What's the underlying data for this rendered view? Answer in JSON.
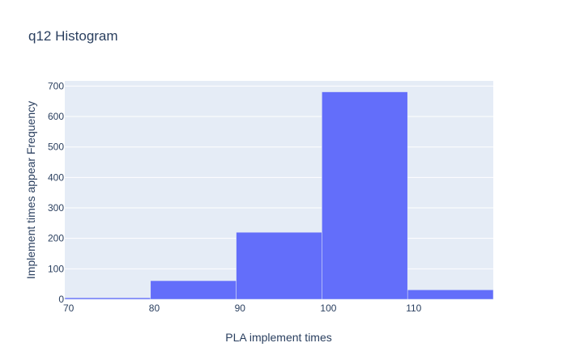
{
  "chart_data": {
    "type": "bar",
    "title": "q12 Histogram",
    "xlabel": "PLA implement times",
    "ylabel": "Implement times appear Frequency",
    "bins": [
      {
        "start": 70,
        "end": 80,
        "count": 5
      },
      {
        "start": 80,
        "end": 90,
        "count": 61
      },
      {
        "start": 90,
        "end": 100,
        "count": 220
      },
      {
        "start": 100,
        "end": 110,
        "count": 681
      },
      {
        "start": 110,
        "end": 120,
        "count": 31
      }
    ],
    "x_ticks": [
      "70",
      "80",
      "90",
      "100",
      "110"
    ],
    "y_ticks": [
      "0",
      "100",
      "200",
      "300",
      "400",
      "500",
      "600",
      "700"
    ],
    "xlim": [
      70,
      120
    ],
    "ylim": [
      0,
      717
    ],
    "grid": true,
    "colors": {
      "bar": "#636efa",
      "plot_bg": "#e5ecf6",
      "grid": "#ffffff",
      "text": "#2a3f5f"
    }
  }
}
